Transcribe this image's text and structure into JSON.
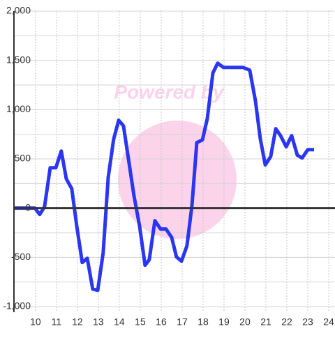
{
  "chart_data": {
    "type": "line",
    "watermark": "Powered by",
    "x": [
      8.97,
      9.97,
      10.2,
      10.43,
      10.7,
      10.97,
      11.23,
      11.47,
      11.73,
      11.97,
      12.23,
      12.47,
      12.73,
      12.97,
      13.23,
      13.47,
      13.73,
      13.97,
      14.2,
      14.47,
      14.7,
      14.97,
      15.23,
      15.43,
      15.7,
      15.97,
      16.23,
      16.5,
      16.73,
      16.97,
      17.23,
      17.47,
      17.7,
      17.97,
      18.2,
      18.47,
      18.7,
      18.97,
      19.9,
      20.23,
      20.5,
      20.73,
      20.97,
      21.23,
      21.47,
      21.7,
      21.97,
      22.23,
      22.5,
      22.73,
      23.0,
      23.3
    ],
    "series": [
      {
        "color": "#2b36f2",
        "values": [
          0,
          0,
          -64,
          14,
          410,
          410,
          580,
          297,
          198,
          -184,
          -552,
          -509,
          -821,
          -835,
          -453,
          311,
          700,
          892,
          835,
          453,
          127,
          -184,
          -580,
          -524,
          -127,
          -212,
          -212,
          -297,
          -495,
          -538,
          -382,
          28,
          665,
          693,
          906,
          1373,
          1472,
          1429,
          1429,
          1401,
          1090,
          708,
          439,
          524,
          807,
          736,
          623,
          736,
          538,
          509,
          594,
          594
        ]
      }
    ],
    "xlim": [
      8.97,
      24.3
    ],
    "xticks": [
      10,
      11,
      12,
      13,
      14,
      15,
      16,
      17,
      18,
      19,
      20,
      21,
      22,
      23,
      24
    ],
    "ylim": [
      -1000,
      2000
    ],
    "yticks": [
      {
        "value": -1000,
        "label": "-1,000"
      },
      -500,
      0,
      500,
      {
        "value": 1000,
        "label": "1,000"
      },
      {
        "value": 1500,
        "label": "1,500"
      },
      {
        "value": 2000,
        "label": "2,000"
      }
    ],
    "yminor_ticks": [
      -750,
      -250,
      250,
      750,
      1250,
      1750
    ],
    "grid": true
  }
}
